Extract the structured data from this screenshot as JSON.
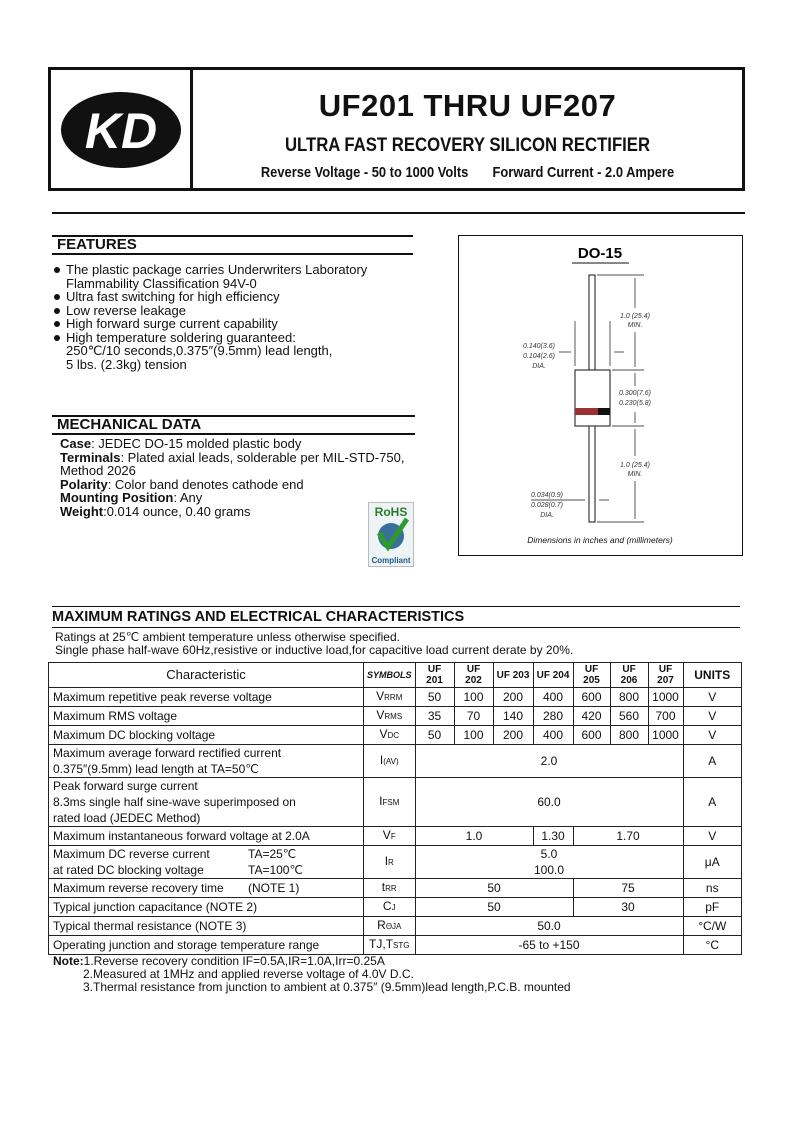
{
  "header": {
    "logo_text": "KD",
    "title": "UF201  THRU  UF207",
    "subtitle": "ULTRA FAST RECOVERY SILICON RECTIFIER",
    "reverse_voltage": "Reverse Voltage - 50 to 1000 Volts",
    "forward_current": "Forward Current - 2.0 Ampere"
  },
  "features": {
    "title": "FEATURES",
    "items": [
      {
        "text": "The plastic package carries Underwriters Laboratory",
        "cont": "Flammability Classification 94V-0"
      },
      {
        "text": "Ultra fast switching for high efficiency"
      },
      {
        "text": "Low reverse leakage"
      },
      {
        "text": "High forward surge current capability"
      },
      {
        "text": "High temperature soldering guaranteed:",
        "cont": "250℃/10 seconds,0.375″(9.5mm) lead length,",
        "cont2": "5 lbs. (2.3kg) tension"
      }
    ]
  },
  "mechanical": {
    "title": "MECHANICAL DATA",
    "items": [
      {
        "label": "Case",
        "text": ": JEDEC DO-15 molded plastic body"
      },
      {
        "label": "Terminals",
        "text": ": Plated axial leads, solderable per MIL-STD-750,",
        "cont": "Method 2026"
      },
      {
        "label": "Polarity",
        "text": ": Color band denotes cathode end"
      },
      {
        "label": "Mounting Position",
        "text": ": Any"
      },
      {
        "label": "Weight",
        "text": ":0.014 ounce, 0.40 grams"
      }
    ],
    "rohs": {
      "top": "RoHS",
      "bottom": "Compliant"
    }
  },
  "package": {
    "title": "DO-15",
    "lead_length_top": "1.0 (25.4)",
    "lead_length_top_min": "MIN.",
    "body_dia_max": "0.140(3.6)",
    "body_dia_min": "0.104(2.6)",
    "body_dia_label": "DIA.",
    "body_len_max": "0.300(7.6)",
    "body_len_min": "0.230(5.8)",
    "lead_length_bottom": "1.0 (25.4)",
    "lead_length_bottom_min": "MIN.",
    "lead_dia_max": "0.034(0.9)",
    "lead_dia_min": "0.028(0.7)",
    "lead_dia_label": "DIA.",
    "caption": "Dimensions in inches and (millimeters)"
  },
  "ratings": {
    "title": "MAXIMUM RATINGS AND ELECTRICAL CHARACTERISTICS",
    "note1": "Ratings at 25℃ ambient temperature unless otherwise specified.",
    "note2": "Single phase half-wave 60Hz,resistive or inductive load,for capacitive load current derate by 20%.",
    "headers": {
      "characteristic": "Characteristic",
      "symbols": "SYMBOLS",
      "parts": [
        "UF 201",
        "UF 202",
        "UF 203",
        "UF 204",
        "UF 205",
        "UF 206",
        "UF 207"
      ],
      "units": "UNITS"
    },
    "rows": {
      "vrrm": {
        "label": "Maximum repetitive peak reverse voltage",
        "sym": "V",
        "sub": "RRM",
        "values": [
          "50",
          "100",
          "200",
          "400",
          "600",
          "800",
          "1000"
        ],
        "unit": "V"
      },
      "vrms": {
        "label": "Maximum RMS voltage",
        "sym": "V",
        "sub": "RMS",
        "values": [
          "35",
          "70",
          "140",
          "280",
          "420",
          "560",
          "700"
        ],
        "unit": "V"
      },
      "vdc": {
        "label": "Maximum DC blocking voltage",
        "sym": "V",
        "sub": "DC",
        "values": [
          "50",
          "100",
          "200",
          "400",
          "600",
          "800",
          "1000"
        ],
        "unit": "V"
      },
      "iav": {
        "label1": "Maximum average forward rectified current",
        "label2": "0.375″(9.5mm) lead length at TA=50℃",
        "sym": "I",
        "sub": "(AV)",
        "value": "2.0",
        "unit": "A"
      },
      "ifsm": {
        "label1": "Peak forward surge current",
        "label2": "8.3ms single half sine-wave superimposed on",
        "label3": "rated load (JEDEC Method)",
        "sym": "I",
        "sub": "FSM",
        "value": "60.0",
        "unit": "A"
      },
      "vf": {
        "label": "Maximum instantaneous forward voltage at 2.0A",
        "sym": "V",
        "sub": "F",
        "v1": "1.0",
        "v2": "1.30",
        "v3": "1.70",
        "unit": "V"
      },
      "ir": {
        "label1": "Maximum DC reverse current",
        "cond1": "TA=25℃",
        "label2": "at rated DC blocking voltage",
        "cond2": "TA=100℃",
        "sym": "I",
        "sub": "R",
        "value1": "5.0",
        "value2": "100.0",
        "unit": "μA"
      },
      "trr": {
        "label": "Maximum reverse recovery time",
        "note": "(NOTE 1)",
        "sym": "t",
        "sub": "rr",
        "v1": "50",
        "v2": "75",
        "unit": "ns"
      },
      "cj": {
        "label": "Typical junction capacitance (NOTE 2)",
        "sym": "C",
        "sub": "J",
        "v1": "50",
        "v2": "30",
        "unit": "pF"
      },
      "rja": {
        "label": "Typical thermal resistance (NOTE 3)",
        "sym": "R",
        "sub": "θJA",
        "value": "50.0",
        "unit": "°C/W"
      },
      "tj": {
        "label": "Operating junction and storage temperature range",
        "sym": "TJ,T",
        "sub": "STG",
        "value": "-65 to +150",
        "unit": "°C"
      }
    }
  },
  "notes": {
    "label": "Note:",
    "n1": "1.Reverse recovery condition IF=0.5A,IR=1.0A,Irr=0.25A",
    "n2": "2.Measured at 1MHz and applied reverse voltage of 4.0V D.C.",
    "n3": "3.Thermal resistance from junction to ambient at 0.375″ (9.5mm)lead length,P.C.B. mounted"
  },
  "colors": {
    "band": "#9b3030",
    "text": "#111111"
  }
}
